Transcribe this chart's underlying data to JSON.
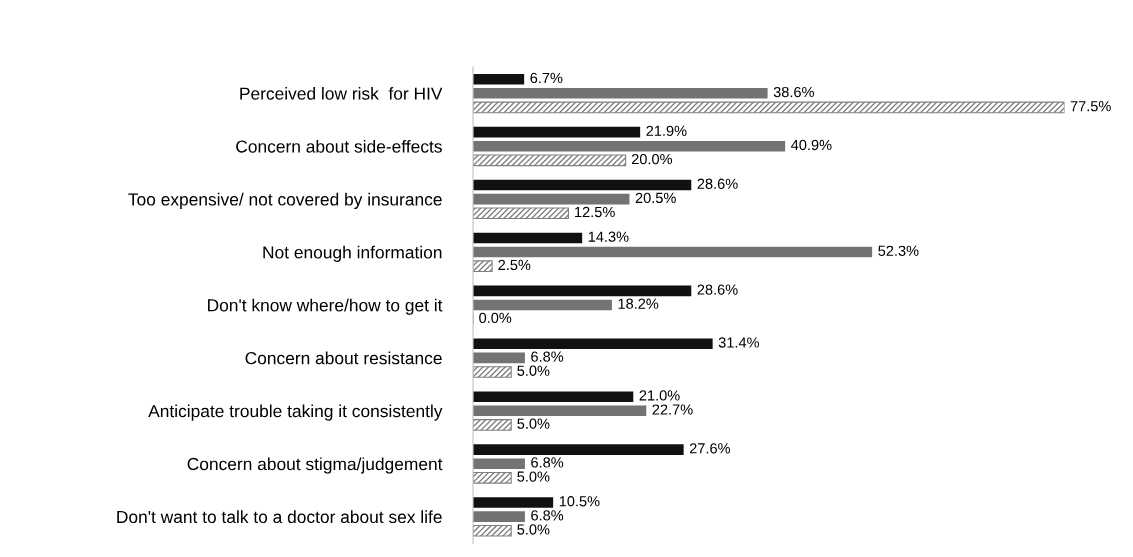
{
  "chart_data": {
    "type": "bar",
    "orientation": "horizontal",
    "legend": false,
    "grid": false,
    "categories": [
      "Perceived low risk  for HIV",
      "Concern about side-effects",
      "Too expensive/ not covered by insurance",
      "Not enough information",
      "Don't know where/how to get it",
      "Concern about resistance",
      "Anticipate trouble taking it consistently",
      "Concern about stigma/judgement",
      "Don't want to talk to a doctor about sex life"
    ],
    "series": [
      {
        "color": "#111111",
        "values": [
          6.7,
          21.9,
          28.6,
          14.3,
          28.6,
          31.4,
          21.0,
          27.6,
          10.5
        ],
        "value_labels": [
          "6.7%",
          "21.9%",
          "28.6%",
          "14.3%",
          "28.6%",
          "31.4%",
          "21.0%",
          "27.6%",
          "10.5%"
        ]
      },
      {
        "color": "#737373",
        "values": [
          38.6,
          40.9,
          20.5,
          52.3,
          18.2,
          6.8,
          22.7,
          6.8,
          6.8
        ],
        "value_labels": [
          "38.6%",
          "40.9%",
          "20.5%",
          "52.3%",
          "18.2%",
          "6.8%",
          "22.7%",
          "6.8%",
          "6.8%"
        ]
      },
      {
        "color": "#808080",
        "values": [
          77.5,
          20.0,
          12.5,
          2.5,
          0.0,
          5.0,
          5.0,
          5.0,
          5.0
        ],
        "value_labels": [
          "77.5%",
          "20.0%",
          "12.5%",
          "2.5%",
          "0.0%",
          "5.0%",
          "5.0%",
          "5.0%",
          "5.0%"
        ]
      }
    ]
  }
}
